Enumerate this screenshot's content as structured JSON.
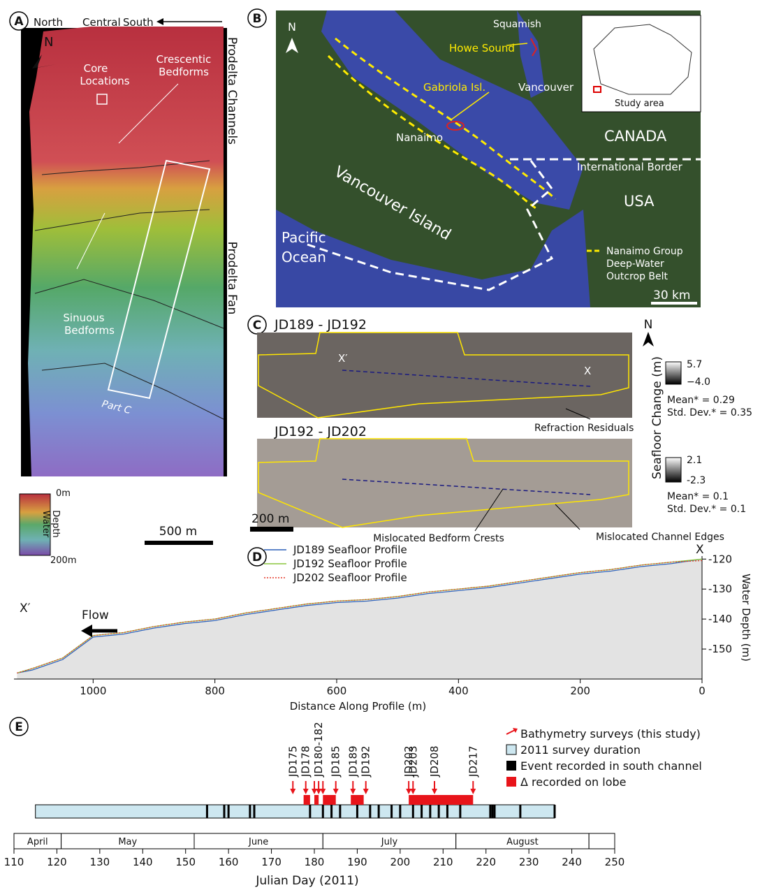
{
  "panels": {
    "a": {
      "letter": "A",
      "direction_labels": [
        "North",
        "Central",
        "South"
      ],
      "north": "N",
      "side_labels": [
        "Prodelta Channels",
        "Prodelta Fan"
      ],
      "annotations": {
        "core": [
          "Core",
          "Locations"
        ],
        "crescentic": [
          "Crescentic",
          "Bedforms"
        ],
        "sinuous": [
          "Sinuous",
          "Bedforms"
        ],
        "part_c": "Part C"
      },
      "depth_scale": {
        "top": "0m",
        "title": [
          "Water",
          "Depth"
        ],
        "bottom": "200m"
      },
      "scale_bar": "500 m"
    },
    "b": {
      "letter": "B",
      "north": "N",
      "places": {
        "squamish": "Squamish",
        "howe": "Howe Sound",
        "gabriola": "Gabriola Isl.",
        "vancouver": "Vancouver",
        "nanaimo": "Nanaimo",
        "canada": "CANADA",
        "border": "International Border",
        "usa": "USA",
        "island": "Vancouver Island",
        "ocean": [
          "Pacific",
          "Ocean"
        ]
      },
      "legend": [
        "Nanaimo Group",
        "Deep-Water",
        "Outcrop Belt"
      ],
      "inset_label": "Study area",
      "scale_bar": "30 km"
    },
    "c": {
      "letter": "C",
      "north": "N",
      "scale_title": "Seafloor Change (m)",
      "scale_bar": "200 m",
      "top": {
        "title": "JD189 - JD192",
        "x_start": "X′",
        "x_end": "X",
        "max": "5.7",
        "min": "−4.0",
        "mean": "Mean* = 0.29",
        "std": "Std. Dev.* = 0.35",
        "note": "Refraction Residuals"
      },
      "bottom": {
        "title": "JD192 - JD202",
        "max": "2.1",
        "min": "-2.3",
        "mean": "Mean* = 0.1",
        "std": "Std. Dev.* = 0.1",
        "notes": [
          "Mislocated Bedform Crests",
          "Mislocated Channel Edges"
        ]
      }
    }
  },
  "chart_data": [
    {
      "type": "line",
      "letter": "D",
      "x_label": "Distance Along Profile (m)",
      "y_label": "Water Depth (m)",
      "end_labels": [
        "X′",
        "X"
      ],
      "flow_label": "Flow",
      "x": [
        1125,
        1100,
        1050,
        1000,
        950,
        900,
        850,
        800,
        750,
        700,
        650,
        600,
        550,
        500,
        450,
        400,
        350,
        300,
        250,
        200,
        150,
        100,
        50,
        0
      ],
      "xlim": [
        1130,
        0
      ],
      "xticks": [
        1000,
        800,
        600,
        400,
        200,
        0
      ],
      "ylim": [
        -160,
        -119
      ],
      "yticks": [
        -120,
        -130,
        -140,
        -150
      ],
      "series": [
        {
          "name": "JD189 Seafloor Profile",
          "color": "#2a5fb8",
          "dash": false,
          "values": [
            -158,
            -157,
            -153.5,
            -146,
            -145,
            -143,
            -141.5,
            -140.5,
            -138.5,
            -137,
            -135.5,
            -134.5,
            -134,
            -133,
            -131.5,
            -130.5,
            -129.5,
            -128,
            -126.5,
            -125,
            -124,
            -122.5,
            -121.5,
            -120
          ]
        },
        {
          "name": "JD192 Seafloor Profile",
          "color": "#8cc63f",
          "dash": false,
          "values": [
            -158,
            -156.5,
            -153,
            -145.5,
            -144.5,
            -142.5,
            -141,
            -140,
            -138,
            -136.5,
            -135,
            -134,
            -133.5,
            -132.5,
            -131,
            -130,
            -129,
            -127.5,
            -126,
            -124.5,
            -123.5,
            -122,
            -121,
            -120
          ]
        },
        {
          "name": "JD202 Seafloor Profile",
          "color": "#e53a2a",
          "dash": true,
          "values": [
            -158,
            -156.5,
            -153,
            -145.5,
            -144.5,
            -142.5,
            -141,
            -140,
            -138,
            -136.5,
            -135,
            -134,
            -133.5,
            -132.5,
            -131,
            -130,
            -129,
            -127.5,
            -126,
            -124.5,
            -123.5,
            -122,
            -121,
            -120.5
          ]
        }
      ]
    },
    {
      "type": "timeline",
      "letter": "E",
      "x_label": "Julian Day (2011)",
      "xlim": [
        110,
        250
      ],
      "xticks": [
        110,
        120,
        130,
        140,
        150,
        160,
        170,
        180,
        190,
        200,
        210,
        220,
        230,
        240,
        250
      ],
      "month_bounds": [
        110,
        121,
        152,
        182,
        213,
        244,
        250
      ],
      "months": [
        "April",
        "May",
        "June",
        "July",
        "August",
        null
      ],
      "survey_duration": {
        "start": 115,
        "end": 236
      },
      "events": [
        155,
        159,
        160,
        165,
        166,
        179,
        182,
        184,
        186,
        190,
        193,
        195,
        198,
        200,
        203,
        205,
        207,
        209,
        211,
        214,
        221,
        221.5,
        222,
        228,
        236
      ],
      "survey_groups": [
        {
          "label": "JD175",
          "days": [
            175
          ]
        },
        {
          "label": "JD178",
          "days": [
            178
          ]
        },
        {
          "label": "JD180-182",
          "days": [
            180,
            181,
            182
          ]
        },
        {
          "label": "JD185",
          "days": [
            185
          ]
        },
        {
          "label": "JD189",
          "days": [
            189
          ]
        },
        {
          "label": "JD192",
          "days": [
            192
          ]
        },
        {
          "label": "JD202",
          "days": [
            202
          ]
        },
        {
          "label": "JD203",
          "days": [
            203
          ]
        },
        {
          "label": "JD208",
          "days": [
            208
          ]
        },
        {
          "label": "JD217",
          "days": [
            217
          ]
        }
      ],
      "lobe_intervals": [
        {
          "start": 177.5,
          "end": 179
        },
        {
          "start": 180,
          "end": 181
        },
        {
          "start": 182,
          "end": 185
        },
        {
          "start": 188.5,
          "end": 191.5
        },
        {
          "start": 202,
          "end": 217
        }
      ],
      "legend": [
        {
          "label": "Bathymetry surveys (this study)",
          "color": "#e8141a"
        },
        {
          "label": "2011 survey duration",
          "color": "#cde7f0"
        },
        {
          "label": "Event recorded in south channel",
          "color": "#000000"
        },
        {
          "label": "Δ recorded on lobe",
          "color": "#e8141a"
        }
      ]
    }
  ]
}
